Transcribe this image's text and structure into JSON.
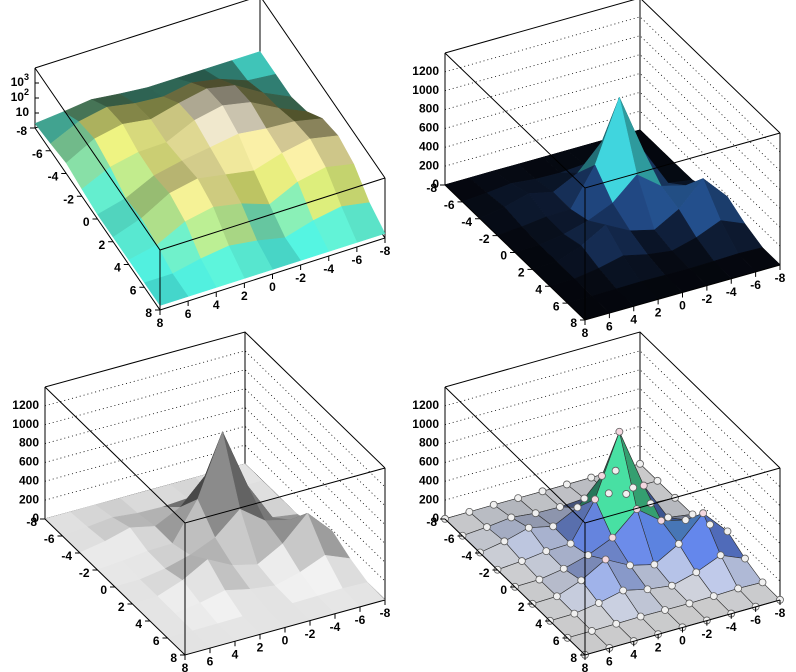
{
  "chart_data": [
    {
      "type": "surface",
      "zlog": true,
      "grid": false,
      "mesh": false,
      "markers": false,
      "palette": [
        "#38e6e6",
        "#62e0c0",
        "#d8e070",
        "#e8dca0",
        "#c8c8f0",
        "#5a5ad0"
      ],
      "x": [
        -8,
        -6,
        -4,
        -2,
        0,
        2,
        4,
        6,
        8
      ],
      "y": [
        -8,
        -6,
        -4,
        -2,
        0,
        2,
        4,
        6,
        8
      ],
      "z": [
        [
          2,
          2,
          2,
          2,
          2,
          3,
          5,
          3,
          2
        ],
        [
          2,
          3,
          15,
          34,
          16,
          23,
          51,
          22,
          3
        ],
        [
          2,
          15,
          189,
          453,
          192,
          64,
          122,
          51,
          5
        ],
        [
          7,
          47,
          458,
          1102,
          457,
          61,
          54,
          22,
          3
        ],
        [
          79,
          200,
          266,
          461,
          232,
          119,
          48,
          6,
          2
        ],
        [
          187,
          453,
          200,
          54,
          118,
          253,
          105,
          9,
          2
        ],
        [
          79,
          187,
          79,
          10,
          45,
          105,
          45,
          5,
          2
        ],
        [
          7,
          15,
          7,
          2,
          5,
          9,
          5,
          2,
          2
        ],
        [
          2,
          2,
          2,
          2,
          2,
          2,
          2,
          2,
          2
        ]
      ],
      "xlim": [
        -8,
        8
      ],
      "ylim": [
        -8,
        8
      ],
      "zlim": [
        1,
        10000
      ],
      "xticks": [
        -8,
        -6,
        -4,
        -2,
        0,
        2,
        4,
        6,
        8
      ],
      "yticks": [
        -8,
        -6,
        -4,
        -2,
        0,
        2,
        4,
        6,
        8
      ],
      "zticks": [
        10,
        {
          "value": 100,
          "label": "10",
          "exponent": "2"
        },
        {
          "value": 1000,
          "label": "10",
          "exponent": "3"
        }
      ]
    },
    {
      "type": "surface",
      "zlog": false,
      "grid": true,
      "mesh": false,
      "markers": false,
      "palette": [
        "#04060c",
        "#1c3c70",
        "#3a8ee0",
        "#40e0d8",
        "#40e040",
        "#d8e040",
        "#d0508c",
        "#f8d8f0"
      ],
      "x": [
        -8,
        -6,
        -4,
        -2,
        0,
        2,
        4,
        6,
        8
      ],
      "y": [
        -8,
        -6,
        -4,
        -2,
        0,
        2,
        4,
        6,
        8
      ],
      "z": [
        [
          2,
          2,
          2,
          2,
          2,
          3,
          5,
          3,
          2
        ],
        [
          2,
          3,
          15,
          34,
          16,
          23,
          51,
          22,
          3
        ],
        [
          2,
          15,
          189,
          453,
          192,
          64,
          122,
          51,
          5
        ],
        [
          7,
          47,
          458,
          1102,
          457,
          61,
          54,
          22,
          3
        ],
        [
          79,
          200,
          266,
          461,
          232,
          119,
          48,
          6,
          2
        ],
        [
          187,
          453,
          200,
          54,
          118,
          253,
          105,
          9,
          2
        ],
        [
          79,
          187,
          79,
          10,
          45,
          105,
          45,
          5,
          2
        ],
        [
          7,
          15,
          7,
          2,
          5,
          9,
          5,
          2,
          2
        ],
        [
          2,
          2,
          2,
          2,
          2,
          2,
          2,
          2,
          2
        ]
      ],
      "xlim": [
        -8,
        8
      ],
      "ylim": [
        -8,
        8
      ],
      "zlim": [
        0,
        1400
      ],
      "xticks": [
        -8,
        -6,
        -4,
        -2,
        0,
        2,
        4,
        6,
        8
      ],
      "yticks": [
        -8,
        -6,
        -4,
        -2,
        0,
        2,
        4,
        6,
        8
      ],
      "zticks": [
        0,
        200,
        400,
        600,
        800,
        1000,
        1200
      ]
    },
    {
      "type": "surface",
      "zlog": false,
      "grid": true,
      "mesh": false,
      "markers": false,
      "palette": [
        "#f2f2f2",
        "#7a7a7a",
        "#bdbdbd",
        "#f0f0f0"
      ],
      "x": [
        -8,
        -6,
        -4,
        -2,
        0,
        2,
        4,
        6,
        8
      ],
      "y": [
        -8,
        -6,
        -4,
        -2,
        0,
        2,
        4,
        6,
        8
      ],
      "z": [
        [
          2,
          2,
          2,
          2,
          2,
          3,
          5,
          3,
          2
        ],
        [
          2,
          3,
          15,
          34,
          16,
          23,
          51,
          22,
          3
        ],
        [
          2,
          15,
          189,
          453,
          192,
          64,
          122,
          51,
          5
        ],
        [
          7,
          47,
          458,
          1102,
          457,
          61,
          54,
          22,
          3
        ],
        [
          79,
          200,
          266,
          461,
          232,
          119,
          48,
          6,
          2
        ],
        [
          187,
          453,
          200,
          54,
          118,
          253,
          105,
          9,
          2
        ],
        [
          79,
          187,
          79,
          10,
          45,
          105,
          45,
          5,
          2
        ],
        [
          7,
          15,
          7,
          2,
          5,
          9,
          5,
          2,
          2
        ],
        [
          2,
          2,
          2,
          2,
          2,
          2,
          2,
          2,
          2
        ]
      ],
      "xlim": [
        -8,
        8
      ],
      "ylim": [
        -8,
        8
      ],
      "zlim": [
        0,
        1400
      ],
      "xticks": [
        -8,
        -6,
        -4,
        -2,
        0,
        2,
        4,
        6,
        8
      ],
      "yticks": [
        -8,
        -6,
        -4,
        -2,
        0,
        2,
        4,
        6,
        8
      ],
      "zticks": [
        0,
        200,
        400,
        600,
        800,
        1000,
        1200
      ]
    },
    {
      "type": "surface",
      "zlog": false,
      "grid": true,
      "mesh": true,
      "markers": true,
      "palette": [
        "#d8d8d8",
        "#5a7ad8",
        "#40d8d8",
        "#50e050",
        "#d8e040",
        "#e04070",
        "#f8c0d8"
      ],
      "x": [
        -8,
        -6,
        -4,
        -2,
        0,
        2,
        4,
        6,
        8
      ],
      "y": [
        -8,
        -6,
        -4,
        -2,
        0,
        2,
        4,
        6,
        8
      ],
      "z": [
        [
          2,
          2,
          2,
          2,
          2,
          3,
          5,
          3,
          2
        ],
        [
          2,
          3,
          15,
          34,
          16,
          23,
          51,
          22,
          3
        ],
        [
          2,
          15,
          189,
          453,
          192,
          64,
          122,
          51,
          5
        ],
        [
          7,
          47,
          458,
          1102,
          457,
          61,
          54,
          22,
          3
        ],
        [
          79,
          200,
          266,
          461,
          232,
          119,
          48,
          6,
          2
        ],
        [
          187,
          453,
          200,
          54,
          118,
          253,
          105,
          9,
          2
        ],
        [
          79,
          187,
          79,
          10,
          45,
          105,
          45,
          5,
          2
        ],
        [
          7,
          15,
          7,
          2,
          5,
          9,
          5,
          2,
          2
        ],
        [
          2,
          2,
          2,
          2,
          2,
          2,
          2,
          2,
          2
        ]
      ],
      "xlim": [
        -8,
        8
      ],
      "ylim": [
        -8,
        8
      ],
      "zlim": [
        0,
        1400
      ],
      "xticks": [
        -8,
        -6,
        -4,
        -2,
        0,
        2,
        4,
        6,
        8
      ],
      "yticks": [
        -8,
        -6,
        -4,
        -2,
        0,
        2,
        4,
        6,
        8
      ],
      "zticks": [
        0,
        200,
        400,
        600,
        800,
        1000,
        1200
      ]
    }
  ]
}
